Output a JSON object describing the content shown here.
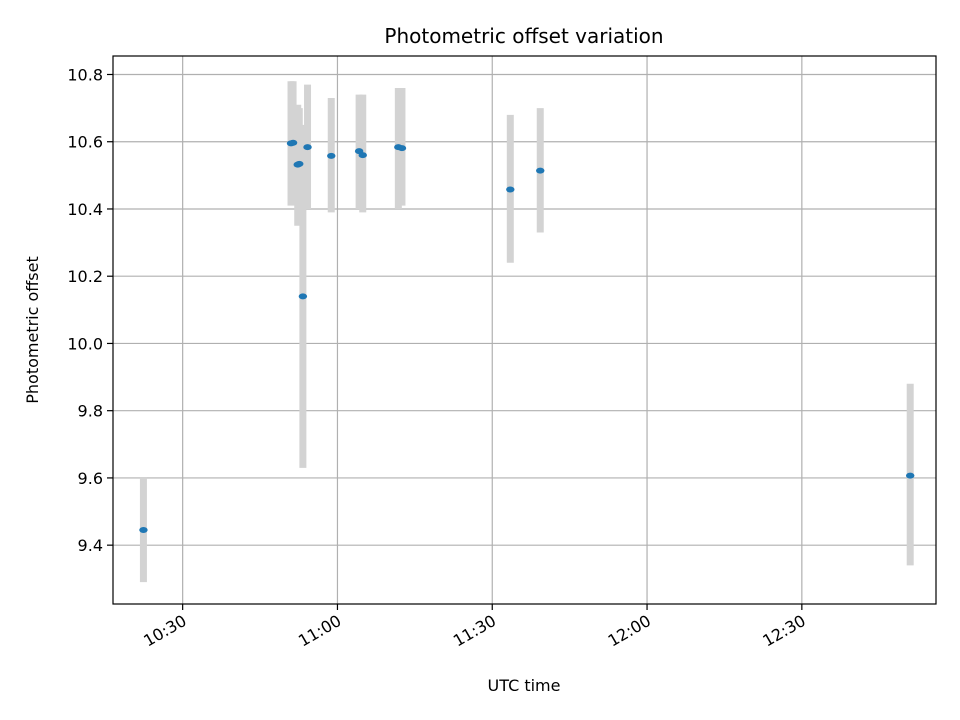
{
  "chart_data": {
    "type": "scatter",
    "title": "Photometric offset variation",
    "xlabel": "UTC time",
    "ylabel": "Photometric offset",
    "x_tick_labels": [
      "10:30",
      "11:00",
      "11:30",
      "12:00",
      "12:30"
    ],
    "x_tick_minutes": [
      630,
      660,
      690,
      720,
      750
    ],
    "y_ticks": [
      9.4,
      9.6,
      9.8,
      10.0,
      10.2,
      10.4,
      10.6,
      10.8
    ],
    "y_tick_labels": [
      "9.4",
      "9.6",
      "9.8",
      "10.0",
      "10.2",
      "10.4",
      "10.6",
      "10.8"
    ],
    "xlim_minutes": [
      616.5,
      776.0
    ],
    "ylim": [
      9.225,
      10.855
    ],
    "grid": true,
    "point_color": "#1f77b4",
    "errorbar_color": "#d3d3d3",
    "series": [
      {
        "points": [
          {
            "t": 622.4,
            "y": 9.445,
            "lo": 9.29,
            "hi": 9.6
          },
          {
            "t": 651.0,
            "y": 10.595,
            "lo": 10.41,
            "hi": 10.78
          },
          {
            "t": 651.4,
            "y": 10.597,
            "lo": 10.42,
            "hi": 10.78
          },
          {
            "t": 652.3,
            "y": 10.532,
            "lo": 10.35,
            "hi": 10.71
          },
          {
            "t": 652.6,
            "y": 10.534,
            "lo": 10.37,
            "hi": 10.7
          },
          {
            "t": 653.3,
            "y": 10.14,
            "lo": 9.63,
            "hi": 10.65
          },
          {
            "t": 654.2,
            "y": 10.584,
            "lo": 10.4,
            "hi": 10.77
          },
          {
            "t": 658.8,
            "y": 10.558,
            "lo": 10.39,
            "hi": 10.73
          },
          {
            "t": 664.2,
            "y": 10.572,
            "lo": 10.4,
            "hi": 10.74
          },
          {
            "t": 664.9,
            "y": 10.56,
            "lo": 10.39,
            "hi": 10.74
          },
          {
            "t": 671.8,
            "y": 10.584,
            "lo": 10.4,
            "hi": 10.76
          },
          {
            "t": 672.5,
            "y": 10.581,
            "lo": 10.41,
            "hi": 10.76
          },
          {
            "t": 693.5,
            "y": 10.458,
            "lo": 10.24,
            "hi": 10.68
          },
          {
            "t": 699.3,
            "y": 10.514,
            "lo": 10.33,
            "hi": 10.7
          },
          {
            "t": 771.0,
            "y": 9.607,
            "lo": 9.34,
            "hi": 9.88
          }
        ]
      }
    ]
  }
}
